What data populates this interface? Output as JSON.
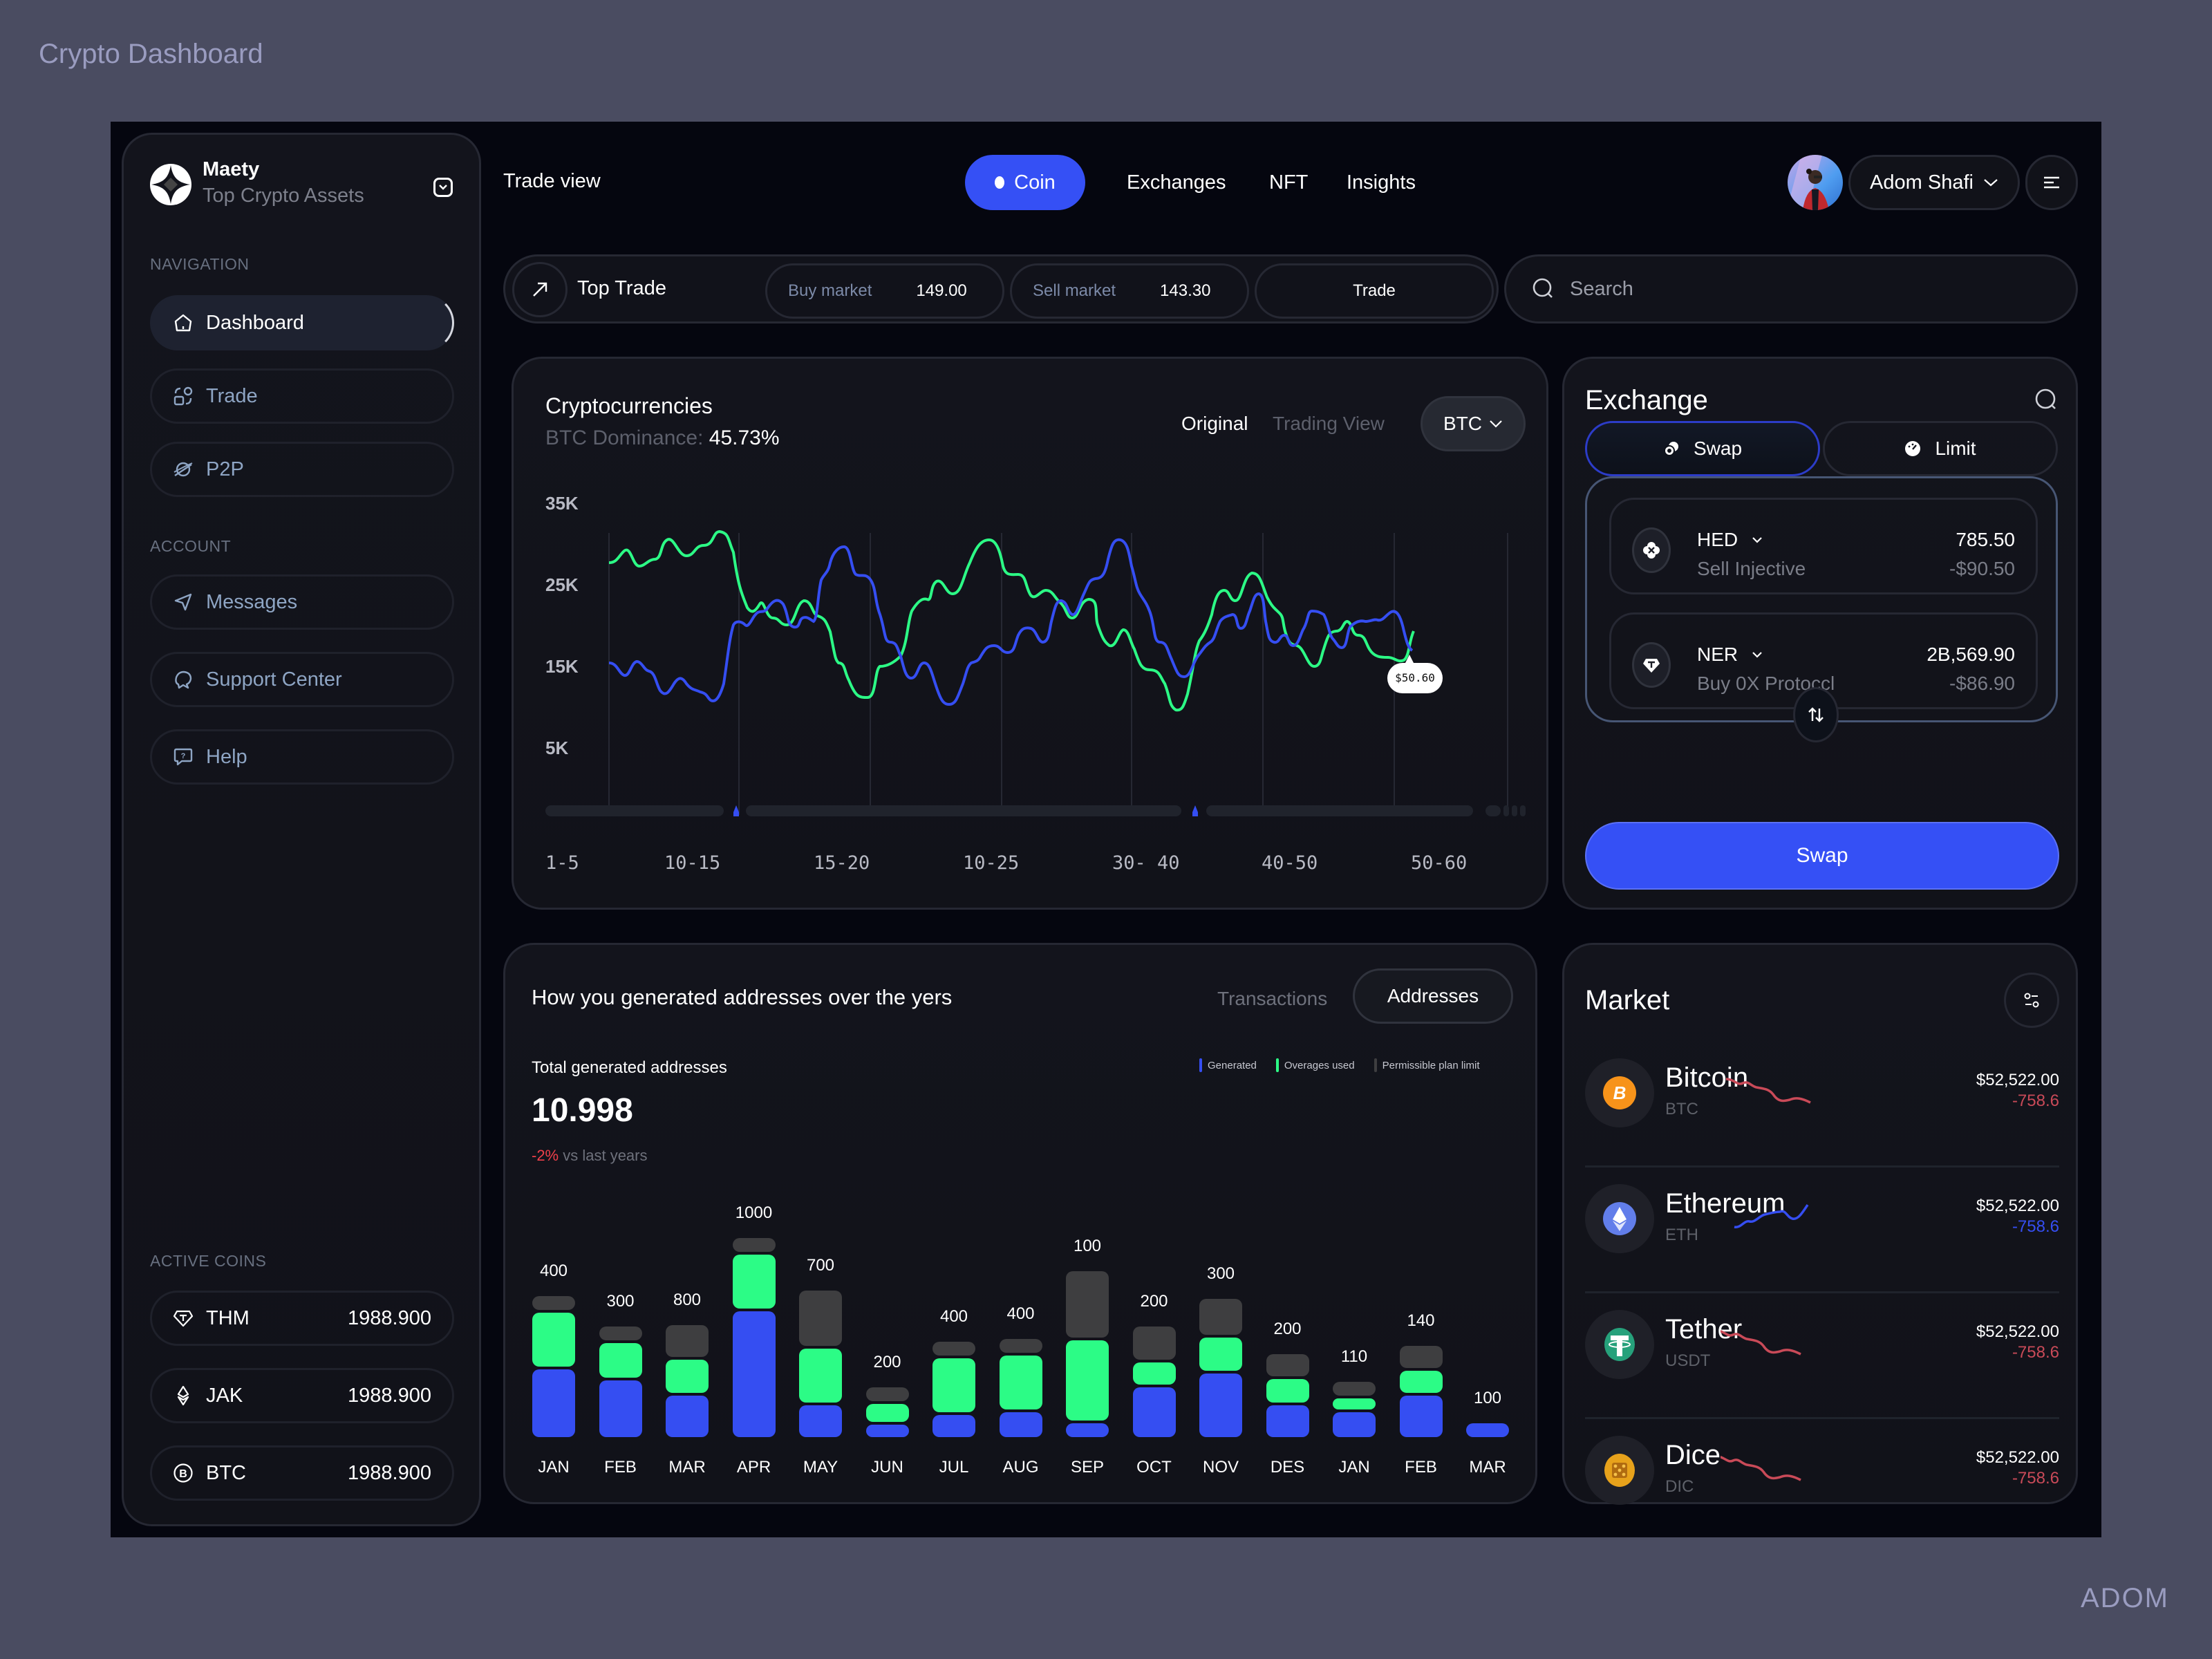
{
  "page": {
    "title": "Crypto Dashboard",
    "signature": "ADOM"
  },
  "colors": {
    "accent": "#3550f5",
    "green": "#2cfc86",
    "gray_bar": "#3e3e40",
    "negative": "#f0404a",
    "sparkline_red": "#c94a58"
  },
  "sidebar": {
    "brand": {
      "name": "Maety",
      "subtitle": "Top Crypto Assets"
    },
    "navigation_label": "NAVIGATION",
    "navigation": [
      {
        "label": "Dashboard",
        "icon": "home-icon",
        "active": true
      },
      {
        "label": "Trade",
        "icon": "trade-icon",
        "active": false
      },
      {
        "label": "P2P",
        "icon": "planet-icon",
        "active": false
      }
    ],
    "account_label": "ACCOUNT",
    "account": [
      {
        "label": "Messages",
        "icon": "send-icon"
      },
      {
        "label": "Support Center",
        "icon": "chat-bubbles-icon"
      },
      {
        "label": "Help",
        "icon": "help-icon"
      }
    ],
    "active_coins_label": "ACTIVE COINS",
    "active_coins": [
      {
        "symbol": "THM",
        "value": "1988.900",
        "icon": "tether-icon"
      },
      {
        "symbol": "JAK",
        "value": "1988.900",
        "icon": "ethereum-icon"
      },
      {
        "symbol": "BTC",
        "value": "1988.900",
        "icon": "bitcoin-icon"
      }
    ]
  },
  "header": {
    "title": "Trade view",
    "tabs": [
      {
        "label": "Coin",
        "active": true
      },
      {
        "label": "Exchanges",
        "active": false
      },
      {
        "label": "NFT",
        "active": false
      },
      {
        "label": "Insights",
        "active": false
      }
    ],
    "user": {
      "name": "Adom Shafi"
    }
  },
  "trade_bar": {
    "label": "Top Trade",
    "buy_label": "Buy market",
    "buy_value": "149.00",
    "sell_label": "Sell market",
    "sell_value": "143.30",
    "trade_button": "Trade"
  },
  "search": {
    "placeholder": "Search"
  },
  "crypto_chart": {
    "title": "Cryptocurrencies",
    "dominance_label": "BTC Dominance:",
    "dominance_value": "45.73%",
    "view_options": [
      {
        "label": "Original",
        "active": true
      },
      {
        "label": "Trading View",
        "active": false
      }
    ],
    "selected_coin": "BTC",
    "tooltip": "$50.60"
  },
  "exchange": {
    "title": "Exchange",
    "tabs": [
      {
        "label": "Swap",
        "active": true
      },
      {
        "label": "Limit",
        "active": false
      }
    ],
    "from": {
      "symbol": "HED",
      "description": "Sell Injective",
      "amount": "785.50",
      "usd": "-$90.50"
    },
    "to": {
      "symbol": "NER",
      "description": "Buy 0X Protoccl",
      "amount": "2B,569.90",
      "usd": "-$86.90"
    },
    "swap_button": "Swap"
  },
  "addresses": {
    "title": "How you generated addresses over the yers",
    "tabs": [
      {
        "label": "Transactions",
        "active": false
      },
      {
        "label": "Addresses",
        "active": true
      }
    ],
    "total_label": "Total generated addresses",
    "total_value": "10.998",
    "change_value": "-2%",
    "change_suffix": " vs last years",
    "legend": [
      "Generated",
      "Overages used",
      "Permissible plan limit"
    ]
  },
  "market": {
    "title": "Market",
    "items": [
      {
        "name": "Bitcoin",
        "symbol": "BTC",
        "price": "$52,522.00",
        "change": "-758.6",
        "trend": "down"
      },
      {
        "name": "Ethereum",
        "symbol": "ETH",
        "price": "$52,522.00",
        "change": "-758.6",
        "trend": "up"
      },
      {
        "name": "Tether",
        "symbol": "USDT",
        "price": "$52,522.00",
        "change": "-758.6",
        "trend": "down"
      },
      {
        "name": "Dice",
        "symbol": "DIC",
        "price": "$52,522.00",
        "change": "-758.6",
        "trend": "down"
      }
    ]
  },
  "chart_data": [
    {
      "type": "line",
      "title": "Cryptocurrencies",
      "xlabel": "",
      "ylabel": "",
      "categories": [
        "1-5",
        "10-15",
        "15-20",
        "10-25",
        "30- 40",
        "40-50",
        "50-60"
      ],
      "yticks": [
        "35K",
        "25K",
        "15K",
        "5K"
      ],
      "ylim": [
        5000,
        35000
      ],
      "grid": "vertical",
      "series": [
        {
          "name": "green",
          "color": "#2cfc86",
          "values": [
            27000,
            29000,
            21000,
            18000,
            24000,
            25500,
            28500,
            24000,
            20500,
            15000,
            25500,
            17500,
            21500,
            21500
          ]
        },
        {
          "name": "blue",
          "color": "#354ef2",
          "values": [
            15000,
            12500,
            21000,
            22500,
            26500,
            17000,
            12000,
            18000,
            22000,
            28000,
            16000,
            23500,
            19500,
            21000
          ]
        }
      ],
      "annotation": {
        "label": "$50.60",
        "position": "end"
      }
    },
    {
      "type": "bar",
      "title": "How you generated addresses over the yers",
      "categories": [
        "JAN",
        "FEB",
        "MAR",
        "APR",
        "MAY",
        "JUN",
        "JUL",
        "AUG",
        "SEP",
        "OCT",
        "NOV",
        "DES",
        "JAN",
        "FEB",
        "MAR"
      ],
      "bar_labels": [
        400,
        300,
        800,
        1000,
        700,
        200,
        400,
        400,
        100,
        200,
        300,
        200,
        110,
        140,
        100
      ],
      "series": [
        {
          "name": "Generated",
          "color": "#354ef2",
          "values": [
            98,
            82,
            60,
            182,
            46,
            18,
            32,
            36,
            20,
            72,
            92,
            46,
            36,
            60,
            20
          ]
        },
        {
          "name": "Overages used",
          "color": "#2cfc86",
          "values": [
            78,
            50,
            48,
            78,
            78,
            26,
            78,
            78,
            116,
            32,
            48,
            34,
            16,
            32,
            0
          ]
        },
        {
          "name": "Permissible plan limit",
          "color": "#3e3e40",
          "values": [
            20,
            20,
            46,
            20,
            80,
            20,
            20,
            20,
            96,
            48,
            52,
            32,
            20,
            32,
            0
          ]
        }
      ],
      "legend_position": "top-right"
    }
  ]
}
